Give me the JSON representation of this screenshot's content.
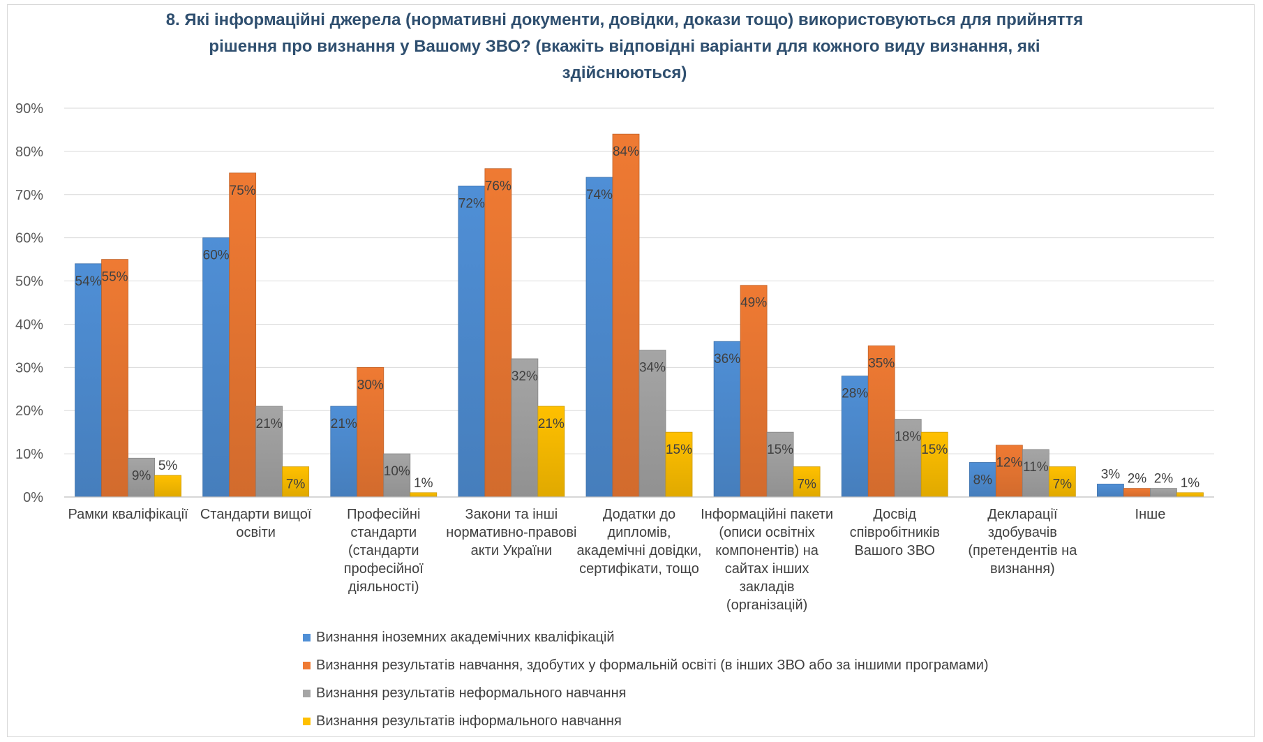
{
  "chart_data": {
    "type": "bar",
    "title_lines": [
      "8. Які інформаційні джерела (нормативні документи, довідки, докази тощо) використовуються для прийняття",
      "рішення про визнання у Вашому ЗВО? (вкажіть відповідні варіанти для кожного виду визнання, які",
      "здійснюються)"
    ],
    "ylim": [
      0,
      90
    ],
    "yticks": [
      0,
      10,
      20,
      30,
      40,
      50,
      60,
      70,
      80,
      90
    ],
    "ytick_labels": [
      "0%",
      "10%",
      "20%",
      "30%",
      "40%",
      "50%",
      "60%",
      "70%",
      "80%",
      "90%"
    ],
    "grid": true,
    "legend_position": "bottom",
    "categories": [
      [
        "Рамки кваліфікації"
      ],
      [
        "Стандарти вищої",
        "освіти"
      ],
      [
        "Професійні",
        "стандарти",
        "(стандарти",
        "професійної",
        "діяльності)"
      ],
      [
        "Закони та інші",
        "нормативно-правові",
        "акти України"
      ],
      [
        "Додатки до",
        "дипломів,",
        "академічні довідки,",
        "сертифікати, тощо"
      ],
      [
        "Інформаційні пакети",
        "(описи освітніх",
        "компонентів) на",
        "сайтах інших",
        "закладів",
        "(організацій)"
      ],
      [
        "Досвід",
        "співробітників",
        "Вашого ЗВО"
      ],
      [
        "Декларації",
        "здобувачів",
        "(претендентів на",
        "визнання)"
      ],
      [
        "Інше"
      ]
    ],
    "series": [
      {
        "name": "Визнання іноземних академічних кваліфікацій",
        "color": "#4f8fd6",
        "values": [
          54,
          60,
          21,
          72,
          74,
          36,
          28,
          8,
          3
        ],
        "labels": [
          "54%",
          "60%",
          "21%",
          "72%",
          "74%",
          "36%",
          "28%",
          "8%",
          "3%"
        ]
      },
      {
        "name": "Визнання результатів навчання, здобутих у формальній освіті (в інших ЗВО або за іншими програмами)",
        "color": "#ef7a33",
        "values": [
          55,
          75,
          30,
          76,
          84,
          49,
          35,
          12,
          2
        ],
        "labels": [
          "55%",
          "75%",
          "30%",
          "76%",
          "84%",
          "49%",
          "35%",
          "12%",
          "2%"
        ]
      },
      {
        "name": "Визнання результатів неформального навчання",
        "color": "#a5a5a5",
        "values": [
          9,
          21,
          10,
          32,
          34,
          15,
          18,
          11,
          2
        ],
        "labels": [
          "9%",
          "21%",
          "10%",
          "32%",
          "34%",
          "15%",
          "18%",
          "11%",
          "2%"
        ]
      },
      {
        "name": "Визнання результатів інформального навчання",
        "color": "#ffc000",
        "values": [
          5,
          7,
          1,
          21,
          15,
          7,
          15,
          7,
          1
        ],
        "labels": [
          "5%",
          "7%",
          "1%",
          "21%",
          "15%",
          "7%",
          "15%",
          "7%",
          "1%"
        ]
      }
    ]
  }
}
